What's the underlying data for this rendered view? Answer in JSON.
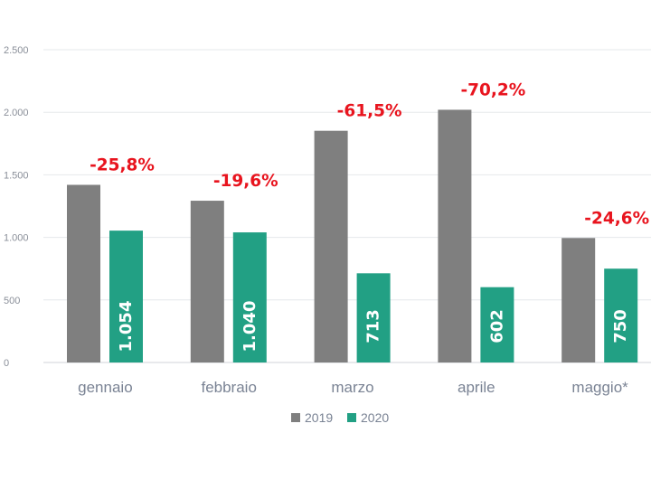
{
  "chart_data": {
    "type": "bar",
    "categories": [
      "gennaio",
      "febbraio",
      "marzo",
      "aprile",
      "maggio*"
    ],
    "series": [
      {
        "name": "2019",
        "color": "#7f7f7f",
        "values": [
          1420,
          1293,
          1852,
          2020,
          995
        ]
      },
      {
        "name": "2020",
        "color": "#22a084",
        "values": [
          1054,
          1040,
          713,
          602,
          750
        ]
      }
    ],
    "value_labels_2020": [
      "1.054",
      "1.040",
      "713",
      "602",
      "750"
    ],
    "change_labels": [
      "-25,8%",
      "-19,6%",
      "-61,5%",
      "-70,2%",
      "-24,6%"
    ],
    "change_label_color": "#e8141e",
    "ylim": [
      0,
      2500
    ],
    "yticks": [
      0,
      500,
      1000,
      1500,
      2000,
      2500
    ],
    "ytick_labels": [
      "0",
      "500",
      "1.000",
      "1.500",
      "2.000",
      "2.500"
    ],
    "grid": true,
    "legend": {
      "position": "bottom",
      "entries": [
        "2019",
        "2020"
      ]
    },
    "title": "",
    "xlabel": "",
    "ylabel": ""
  }
}
